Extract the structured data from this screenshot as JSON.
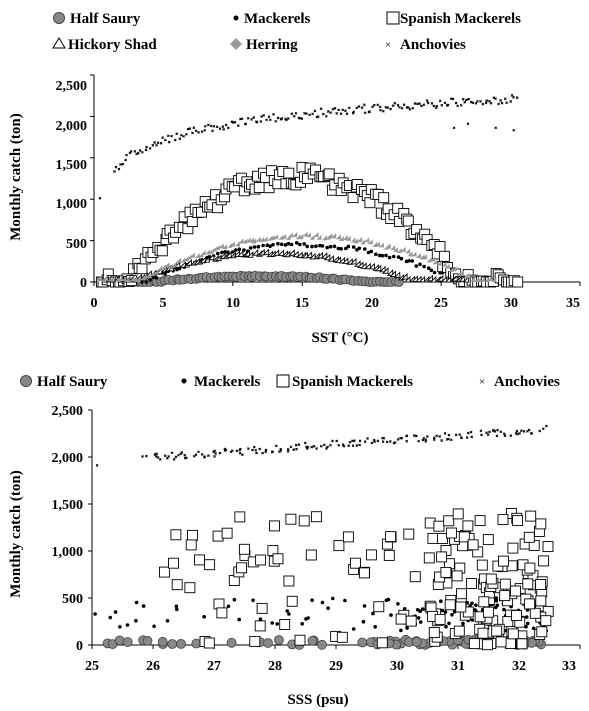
{
  "chart_data": [
    {
      "type": "scatter",
      "xlabel": "SST (°C)",
      "ylabel": "Monthly catch (ton)",
      "xlim": [
        0,
        35
      ],
      "ylim": [
        0,
        2500
      ],
      "xticks": [
        "0",
        "5",
        "10",
        "15",
        "20",
        "25",
        "30",
        "35"
      ],
      "yticks": [
        "0",
        "500",
        "1,000",
        "1,500",
        "2,000",
        "2,500"
      ],
      "grid": false,
      "legend_position": "top",
      "series": [
        {
          "name": "Half Saury",
          "marker": "circle",
          "fill": "#888888",
          "stroke": "#444444",
          "generator": "bell",
          "x_range": [
            0.5,
            22
          ],
          "peak_x": 12,
          "peak_y": 70,
          "spread": 5.5,
          "count": 80,
          "scatter": 8
        },
        {
          "name": "Mackerels",
          "marker": "dot",
          "fill": "#000000",
          "stroke": "#000000",
          "generator": "bell",
          "x_range": [
            0.5,
            30
          ],
          "peak_x": 15,
          "peak_y": 450,
          "spread": 8,
          "count": 110,
          "scatter": 25
        },
        {
          "name": "Spanish Mackerels",
          "marker": "square",
          "fill": "#ffffff",
          "stroke": "#000000",
          "generator": "bell",
          "x_range": [
            0.5,
            30.5
          ],
          "peak_x": 14.5,
          "peak_y": 1280,
          "spread": 8.5,
          "count": 150,
          "scatter": 110
        },
        {
          "name": "Hickory Shad",
          "marker": "triangle",
          "fill": "#ffffff",
          "stroke": "#000000",
          "generator": "bell",
          "x_range": [
            1,
            27
          ],
          "peak_x": 13,
          "peak_y": 320,
          "spread": 7,
          "count": 100,
          "scatter": 15
        },
        {
          "name": "Herring",
          "marker": "diamond",
          "fill": "#999999",
          "stroke": "#999999",
          "generator": "bell",
          "x_range": [
            0.5,
            29
          ],
          "peak_x": 15.5,
          "peak_y": 530,
          "spread": 8.5,
          "count": 110,
          "scatter": 20
        },
        {
          "name": "Anchovies",
          "marker": "cross",
          "fill": "#000000",
          "stroke": "#000000",
          "generator": "log",
          "x_range": [
            1.5,
            30.5
          ],
          "y_start": 1300,
          "y_end": 2200,
          "count": 180,
          "scatter": 50,
          "extra": [
            {
              "x": 0.5,
              "y": 1000
            },
            {
              "x": 26,
              "y": 1850
            },
            {
              "x": 27,
              "y": 1900
            },
            {
              "x": 29,
              "y": 1850
            },
            {
              "x": 30.3,
              "y": 1820
            }
          ]
        }
      ]
    },
    {
      "type": "scatter",
      "xlabel": "SSS (psu)",
      "ylabel": "Monthly catch (ton)",
      "xlim": [
        25,
        33
      ],
      "ylim": [
        0,
        2500
      ],
      "xticks": [
        "25",
        "26",
        "27",
        "28",
        "29",
        "30",
        "31",
        "32",
        "33"
      ],
      "yticks": [
        "0",
        "500",
        "1,000",
        "1,500",
        "2,000",
        "2,500"
      ],
      "grid": false,
      "legend_position": "top",
      "series": [
        {
          "name": "Half Saury",
          "marker": "circle",
          "fill": "#888888",
          "stroke": "#444444",
          "generator": "uniform",
          "x_range": [
            25.1,
            32.5
          ],
          "y_range": [
            0,
            60
          ],
          "count": 90,
          "dense_from": 29.5
        },
        {
          "name": "Mackerels",
          "marker": "dot",
          "fill": "#000000",
          "stroke": "#000000",
          "generator": "uniform",
          "x_range": [
            25.1,
            32.5
          ],
          "y_range": [
            150,
            500
          ],
          "count": 150,
          "dense_from": 30,
          "extra": [
            {
              "x": 25.05,
              "y": 330
            }
          ]
        },
        {
          "name": "Spanish Mackerels",
          "marker": "square",
          "fill": "#ffffff",
          "stroke": "#000000",
          "generator": "uniform",
          "x_range": [
            26,
            32.5
          ],
          "y_range": [
            0,
            1400
          ],
          "count": 190,
          "dense_from": 30.5
        },
        {
          "name": "Anchovies",
          "marker": "cross",
          "fill": "#000000",
          "stroke": "#000000",
          "generator": "linear",
          "x_range": [
            25.9,
            32.4
          ],
          "y_start": 1980,
          "y_end": 2280,
          "count": 160,
          "scatter": 40,
          "extra": [
            {
              "x": 25.1,
              "y": 1900
            }
          ]
        }
      ]
    }
  ]
}
